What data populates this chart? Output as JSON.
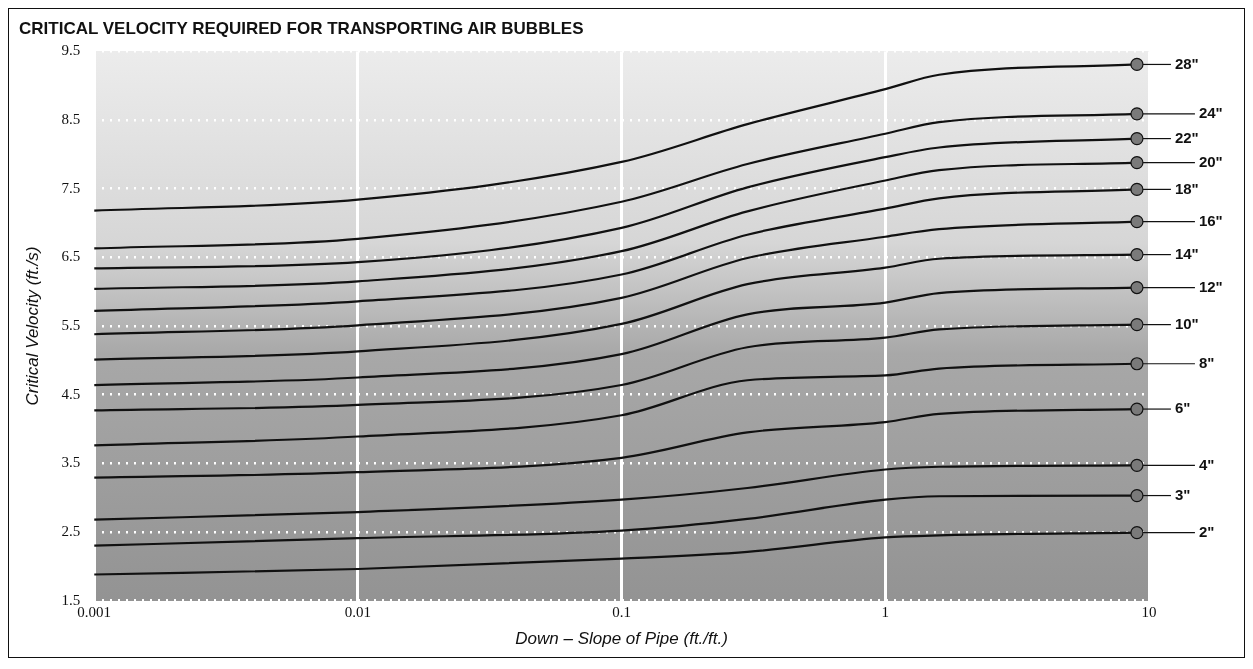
{
  "chart_data": {
    "type": "line",
    "title": "CRITICAL VELOCITY REQUIRED FOR TRANSPORTING AIR BUBBLES",
    "xlabel": "Down – Slope of Pipe (ft./ft.)",
    "ylabel": "Critical Velocity (ft./s)",
    "x": [
      0.001,
      0.01,
      0.1,
      0.3,
      1,
      1.6,
      9
    ],
    "series": [
      {
        "name": "28\"",
        "color": "#111111",
        "values": [
          7.18,
          7.34,
          7.89,
          8.44,
          8.95,
          9.16,
          9.31
        ]
      },
      {
        "name": "24\"",
        "color": "#111111",
        "values": [
          6.63,
          6.77,
          7.31,
          7.86,
          8.3,
          8.47,
          8.59
        ]
      },
      {
        "name": "22\"",
        "color": "#111111",
        "values": [
          6.34,
          6.43,
          6.93,
          7.52,
          7.96,
          8.1,
          8.23
        ]
      },
      {
        "name": "20\"",
        "color": "#111111",
        "values": [
          6.04,
          6.15,
          6.59,
          7.17,
          7.62,
          7.77,
          7.88
        ]
      },
      {
        "name": "18\"",
        "color": "#111111",
        "values": [
          5.72,
          5.86,
          6.25,
          6.83,
          7.21,
          7.36,
          7.49
        ]
      },
      {
        "name": "16\"",
        "color": "#111111",
        "values": [
          5.38,
          5.51,
          5.91,
          6.49,
          6.8,
          6.91,
          7.02
        ]
      },
      {
        "name": "14\"",
        "color": "#111111",
        "values": [
          5.01,
          5.13,
          5.53,
          6.11,
          6.35,
          6.48,
          6.54
        ]
      },
      {
        "name": "12\"",
        "color": "#111111",
        "values": [
          4.64,
          4.75,
          5.09,
          5.67,
          5.84,
          5.98,
          6.06
        ]
      },
      {
        "name": "10\"",
        "color": "#111111",
        "values": [
          4.27,
          4.35,
          4.64,
          5.19,
          5.33,
          5.45,
          5.52
        ]
      },
      {
        "name": "8\"",
        "color": "#111111",
        "values": [
          3.76,
          3.89,
          4.2,
          4.71,
          4.78,
          4.88,
          4.95
        ]
      },
      {
        "name": "6\"",
        "color": "#111111",
        "values": [
          3.29,
          3.37,
          3.58,
          3.95,
          4.1,
          4.22,
          4.29
        ]
      },
      {
        "name": "4\"",
        "color": "#111111",
        "values": [
          2.68,
          2.79,
          2.97,
          3.14,
          3.41,
          3.45,
          3.47
        ]
      },
      {
        "name": "3\"",
        "color": "#111111",
        "values": [
          2.3,
          2.41,
          2.52,
          2.69,
          2.97,
          3.02,
          3.03
        ]
      },
      {
        "name": "2\"",
        "color": "#111111",
        "values": [
          1.88,
          1.96,
          2.11,
          2.21,
          2.42,
          2.45,
          2.49
        ]
      }
    ],
    "xlim": [
      0.001,
      10
    ],
    "xticks": [
      0.001,
      0.01,
      0.1,
      1,
      10
    ],
    "ylim": [
      1.5,
      9.5
    ],
    "yticks": [
      1.5,
      2.5,
      3.5,
      4.5,
      5.5,
      6.5,
      7.5,
      8.5,
      9.5
    ],
    "log": "x",
    "grid": true,
    "legend": "right"
  }
}
